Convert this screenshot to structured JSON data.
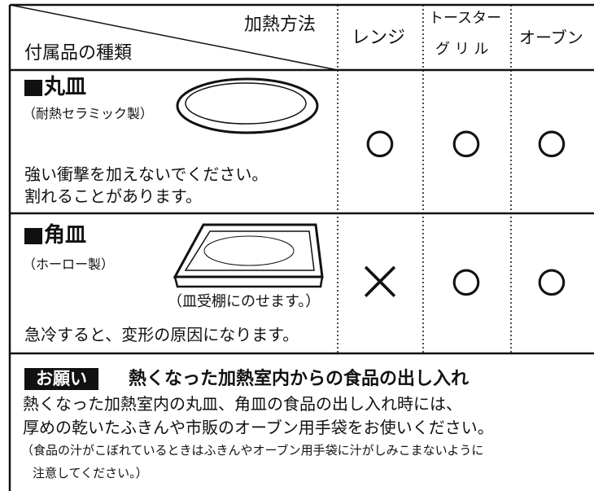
{
  "header": {
    "corner_top": "加熱方法",
    "corner_bottom": "付属品の種類",
    "columns": [
      "レンジ",
      "トースター",
      "グ リ ル",
      "オーブン"
    ]
  },
  "rows": [
    {
      "name": "丸皿",
      "material": "（耐熱セラミック製）",
      "note": "",
      "cautions": [
        "強い衝撃を加えないでください。",
        "割れることがあります。"
      ],
      "marks": [
        "○",
        "○",
        "○"
      ]
    },
    {
      "name": "角皿",
      "material": "（ホーロー製）",
      "note": "（皿受棚にのせます。）",
      "cautions": [
        "急冷すると、変形の原因になります。"
      ],
      "marks": [
        "×",
        "○",
        "○"
      ]
    }
  ],
  "request": {
    "badge": "お願い",
    "title": "熱くなった加熱室内からの食品の出し入れ",
    "lines": [
      "熱くなった加熱室内の丸皿、角皿の食品の出し入れ時には、",
      "厚めの乾いたふきんや市販のオーブン用手袋をお使いください。"
    ],
    "small": [
      "（食品の汁がこぼれているときはふきんやオーブン用手袋に汁がしみこまないように",
      "注意してください。）"
    ]
  }
}
